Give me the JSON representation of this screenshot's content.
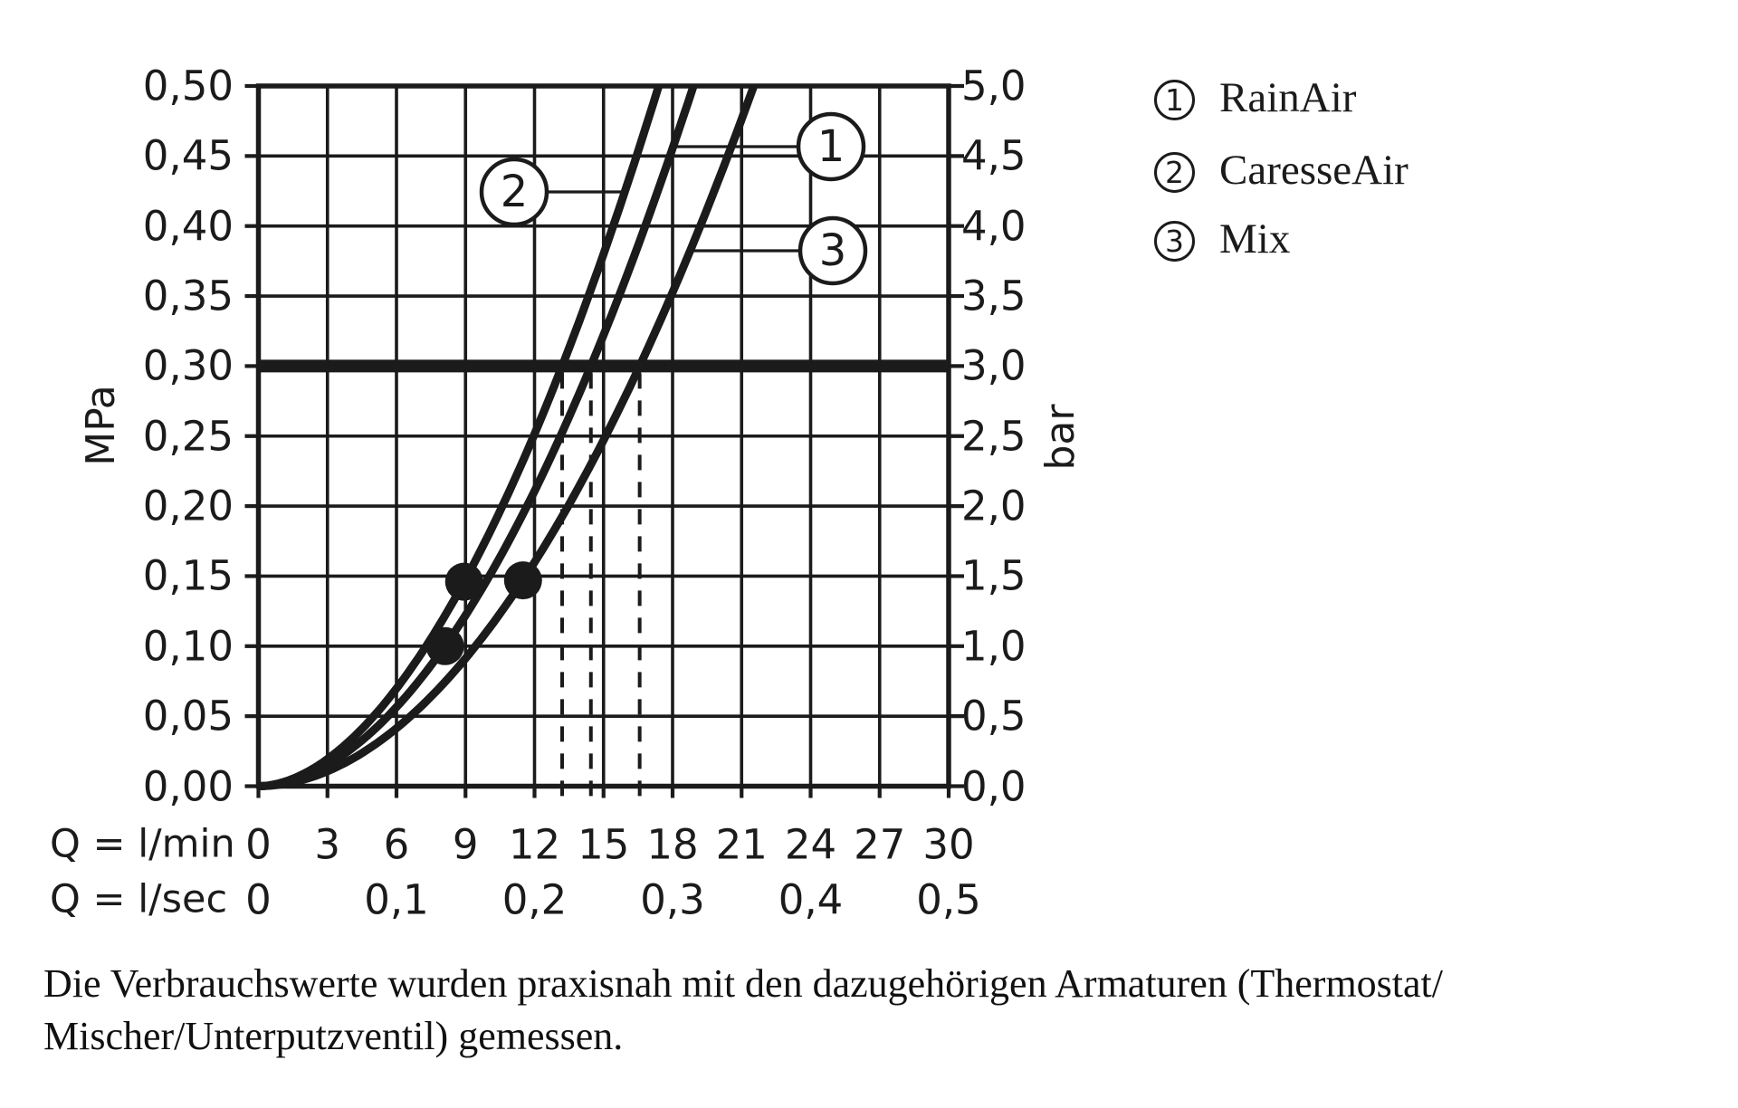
{
  "chart_data": {
    "type": "line",
    "title": "",
    "description": "Shower flow-rate vs. pressure diagram with three spray-mode curves",
    "x_axis": {
      "row1_label": "Q = l/min",
      "row1_ticks": [
        "0",
        "3",
        "6",
        "9",
        "12",
        "15",
        "18",
        "21",
        "24",
        "27",
        "30"
      ],
      "row1_tick_values_lmin": [
        0,
        3,
        6,
        9,
        12,
        15,
        18,
        21,
        24,
        27,
        30
      ],
      "row2_label": "Q = l/sec",
      "row2_ticks": [
        {
          "value": "0",
          "at_lmin": 0
        },
        {
          "value": "0,1",
          "at_lmin": 6
        },
        {
          "value": "0,2",
          "at_lmin": 12
        },
        {
          "value": "0,3",
          "at_lmin": 18
        },
        {
          "value": "0,4",
          "at_lmin": 24
        },
        {
          "value": "0,5",
          "at_lmin": 30
        }
      ],
      "range_lmin": [
        0,
        30
      ]
    },
    "y_axis_left": {
      "unit": "MPa",
      "ticks": [
        "0,50",
        "0,45",
        "0,40",
        "0,35",
        "0,30",
        "0,25",
        "0,20",
        "0,15",
        "0,10",
        "0,05",
        "0,00"
      ],
      "tick_values_mpa": [
        0.5,
        0.45,
        0.4,
        0.35,
        0.3,
        0.25,
        0.2,
        0.15,
        0.1,
        0.05,
        0.0
      ],
      "range_mpa": [
        0,
        0.5
      ]
    },
    "y_axis_right": {
      "unit": "bar",
      "ticks": [
        "5,0",
        "4,5",
        "4,0",
        "3,5",
        "3,0",
        "2,5",
        "2,0",
        "1,5",
        "1,0",
        "0,5",
        "0,0"
      ],
      "range_bar": [
        0,
        5
      ]
    },
    "grid": {
      "x_step_lmin": 3,
      "y_step_mpa": 0.05,
      "grid_on": true
    },
    "reference_line": {
      "pressure_mpa": 0.3,
      "pressure_bar": 3.0,
      "style": "thick-horizontal"
    },
    "series": [
      {
        "id": "1",
        "name": "RainAir",
        "exponent": 1.9,
        "flow_at_3bar_lmin": 14.45,
        "dashed_drop_line_at_lmin": 14.45,
        "dot": {
          "q_lmin": 8.11,
          "p_mpa": 0.1
        }
      },
      {
        "id": "2",
        "name": "CaresseAir",
        "exponent": 1.85,
        "flow_at_3bar_lmin": 13.2,
        "dashed_drop_line_at_lmin": 13.2,
        "dot": {
          "q_lmin": 8.94,
          "p_mpa": 0.146
        }
      },
      {
        "id": "3",
        "name": "Mix",
        "exponent": 1.95,
        "flow_at_3bar_lmin": 16.57,
        "dashed_drop_line_at_lmin": 16.57,
        "dot": {
          "q_lmin": 11.5,
          "p_mpa": 0.147
        }
      }
    ],
    "colors": {
      "ink": "#1b1b1b",
      "background": "#ffffff"
    }
  },
  "legend": {
    "items": [
      {
        "number": "1",
        "label": "RainAir"
      },
      {
        "number": "2",
        "label": "CaresseAir"
      },
      {
        "number": "3",
        "label": "Mix"
      }
    ]
  },
  "caption": {
    "line1": "Die Verbrauchswerte wurden praxisnah mit den dazugehörigen Armaturen (Thermostat/",
    "line2": "Mischer/Unterputzventil) gemessen."
  }
}
